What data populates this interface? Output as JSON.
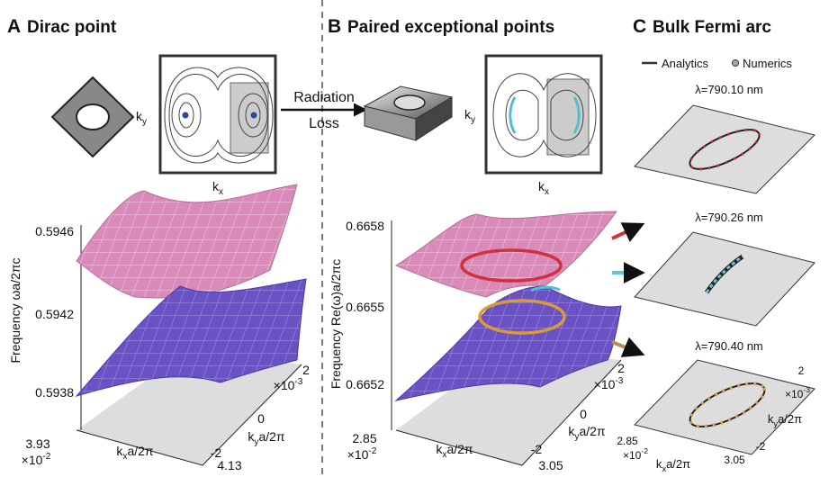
{
  "panel_a": {
    "letter": "A",
    "title": "Dirac point",
    "inset_ky": {
      "base": "k",
      "sub": "y"
    },
    "inset_kx": {
      "base": "k",
      "sub": "x"
    },
    "y_axis_label": "Frequency ωa/2πc",
    "y_ticks": [
      "0.5946",
      "0.5942",
      "0.5938"
    ],
    "x_ticks": [
      "3.93",
      "4.13"
    ],
    "x_scale": {
      "base": "×10",
      "sup": "-2"
    },
    "x_axis_label": {
      "base": "k",
      "sub": "x",
      "rest": "a/2π"
    },
    "ky_ticks": [
      "2",
      "0",
      "-2"
    ],
    "ky_scale": {
      "base": "×10",
      "sup": "-3"
    },
    "ky_axis_label": {
      "base": "k",
      "sub": "y",
      "rest": "a/2π"
    }
  },
  "transition": {
    "line1": "Radiation",
    "line2": "Loss"
  },
  "panel_b": {
    "letter": "B",
    "title": "Paired exceptional points",
    "inset_ky": {
      "base": "k",
      "sub": "y"
    },
    "inset_kx": {
      "base": "k",
      "sub": "x"
    },
    "y_axis_label": "Frequency Re(ω)a/2πc",
    "y_ticks": [
      "0.6658",
      "0.6655",
      "0.6652"
    ],
    "x_ticks": [
      "2.85",
      "3.05"
    ],
    "x_scale": {
      "base": "×10",
      "sup": "-2"
    },
    "x_axis_label": {
      "base": "k",
      "sub": "x",
      "rest": "a/2π"
    },
    "ky_ticks": [
      "2",
      "0",
      "-2"
    ],
    "ky_scale": {
      "base": "×10",
      "sup": "-3"
    },
    "ky_axis_label": {
      "base": "k",
      "sub": "y",
      "rest": "a/2π"
    }
  },
  "panel_c": {
    "letter": "C",
    "title": "Bulk Fermi arc",
    "legend": [
      "Analytics",
      "Numerics"
    ],
    "wavelengths": [
      "λ=790.10 nm",
      "λ=790.26 nm",
      "λ=790.40 nm"
    ],
    "x_ticks": [
      "2.85",
      "3.05"
    ],
    "x_scale": {
      "base": "×10",
      "sup": "-2"
    },
    "x_axis_label": {
      "base": "k",
      "sub": "x",
      "rest": "a/2π"
    },
    "ky_ticks": [
      "2",
      "-2"
    ],
    "ky_scale": {
      "base": "×10",
      "sup": "-3"
    },
    "ky_axis_label": {
      "base": "k",
      "sub": "y",
      "rest": "a/2π"
    }
  }
}
